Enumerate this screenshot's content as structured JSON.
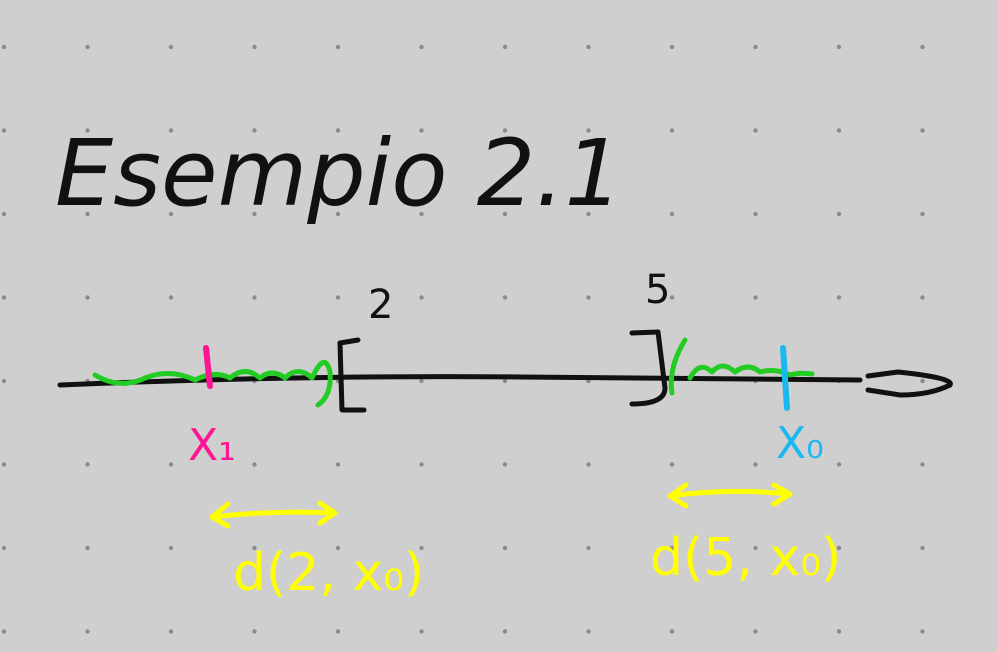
{
  "title": "Esempio 2.1",
  "labels": {
    "left_endpoint": "2",
    "right_endpoint": "5",
    "x1": "X₁",
    "x0": "X₀",
    "dist_left": "d(2, x₀)",
    "dist_right": "d(5, x₀)"
  },
  "colors": {
    "background": "#cfcfcf",
    "grid_dot": "#8a8a8a",
    "ink": "#111111",
    "green": "#22cc22",
    "magenta": "#ff1493",
    "cyan": "#1ab8f0",
    "yellow": "#ffff00"
  }
}
